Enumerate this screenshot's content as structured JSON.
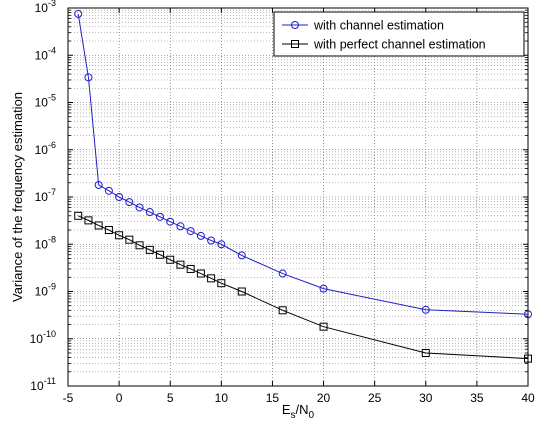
{
  "chart_data": {
    "type": "line",
    "title": "",
    "xlabel": {
      "base": "E",
      "sub1": "s",
      "mid": "/N",
      "sub2": "0"
    },
    "ylabel": "Variance of the frequency estimation",
    "xlim": [
      -5,
      40
    ],
    "ylim": [
      1e-11,
      0.001
    ],
    "yscale": "log",
    "grid": true,
    "legend_position": "top-right",
    "x_ticks": [
      "-5",
      "0",
      "5",
      "10",
      "15",
      "20",
      "25",
      "30",
      "35",
      "40"
    ],
    "y_ticks": [
      {
        "base": "10",
        "exp": "-11"
      },
      {
        "base": "10",
        "exp": "-10"
      },
      {
        "base": "10",
        "exp": "-9"
      },
      {
        "base": "10",
        "exp": "-8"
      },
      {
        "base": "10",
        "exp": "-7"
      },
      {
        "base": "10",
        "exp": "-6"
      },
      {
        "base": "10",
        "exp": "-5"
      },
      {
        "base": "10",
        "exp": "-4"
      },
      {
        "base": "10",
        "exp": "-3"
      }
    ],
    "series": [
      {
        "name": "with channel estimation",
        "color": "#1f1fcc",
        "marker": "circle",
        "x": [
          -4,
          -3,
          -2,
          -1,
          0,
          1,
          2,
          3,
          4,
          5,
          6,
          7,
          8,
          9,
          10,
          12,
          16,
          20,
          30,
          40
        ],
        "y": [
          0.00075,
          3.4e-05,
          1.8e-07,
          1.35e-07,
          1e-07,
          7.8e-08,
          6e-08,
          4.8e-08,
          3.8e-08,
          3e-08,
          2.4e-08,
          1.9e-08,
          1.5e-08,
          1.2e-08,
          1e-08,
          5.8e-09,
          2.4e-09,
          1.15e-09,
          4.1e-10,
          3.3e-10
        ]
      },
      {
        "name": "with perfect channel estimation",
        "color": "#000000",
        "marker": "square",
        "x": [
          -4,
          -3,
          -2,
          -1,
          0,
          1,
          2,
          3,
          4,
          5,
          6,
          7,
          8,
          9,
          10,
          12,
          16,
          20,
          30,
          40
        ],
        "y": [
          4e-08,
          3.2e-08,
          2.5e-08,
          2e-08,
          1.55e-08,
          1.25e-08,
          9.5e-09,
          7.6e-09,
          6e-09,
          4.7e-09,
          3.7e-09,
          3e-09,
          2.4e-09,
          1.9e-09,
          1.5e-09,
          1e-09,
          4e-10,
          1.8e-10,
          5e-11,
          3.8e-11
        ]
      }
    ]
  }
}
